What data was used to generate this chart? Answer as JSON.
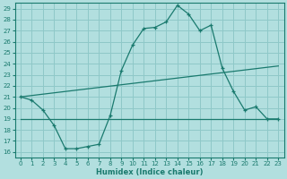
{
  "xlabel": "Humidex (Indice chaleur)",
  "background_color": "#b2dfdf",
  "grid_color": "#8ec8c8",
  "line_color": "#1a7a6e",
  "xlim": [
    -0.5,
    23.5
  ],
  "ylim": [
    15.5,
    29.5
  ],
  "yticks": [
    16,
    17,
    18,
    19,
    20,
    21,
    22,
    23,
    24,
    25,
    26,
    27,
    28,
    29
  ],
  "xticks": [
    0,
    1,
    2,
    3,
    4,
    5,
    6,
    7,
    8,
    9,
    10,
    11,
    12,
    13,
    14,
    15,
    16,
    17,
    18,
    19,
    20,
    21,
    22,
    23
  ],
  "series_main": {
    "x": [
      0,
      1,
      2,
      3,
      4,
      5,
      6,
      7,
      8,
      9,
      10,
      11,
      12,
      13,
      14,
      15,
      16,
      17,
      18,
      19,
      20,
      21,
      22,
      23
    ],
    "y": [
      21.0,
      20.7,
      19.8,
      18.4,
      16.3,
      16.3,
      16.5,
      16.7,
      19.3,
      23.4,
      25.7,
      27.2,
      27.3,
      27.8,
      29.3,
      28.5,
      27.0,
      27.5,
      23.6,
      21.5,
      19.8,
      20.1,
      19.0,
      19.0
    ]
  },
  "series_trend1": {
    "x": [
      0,
      23
    ],
    "y": [
      21.0,
      23.8
    ]
  },
  "series_trend2": {
    "x": [
      0,
      23
    ],
    "y": [
      19.0,
      19.0
    ]
  }
}
